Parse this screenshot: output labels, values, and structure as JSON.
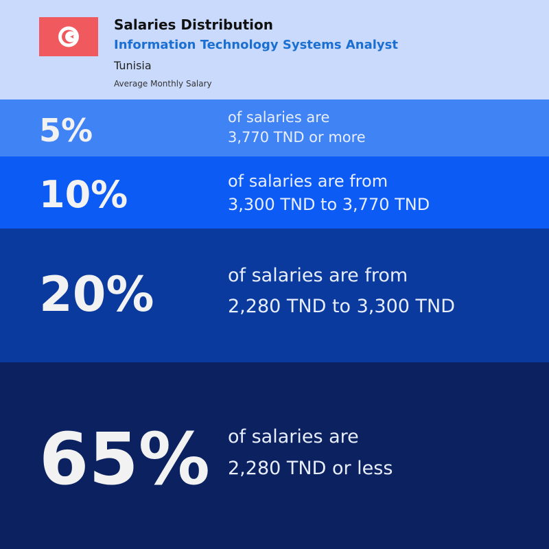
{
  "header": {
    "title": "Salaries Distribution",
    "subtitle": "Information Technology Systems Analyst",
    "country": "Tunisia",
    "caption": "Average Monthly Salary"
  },
  "bands": [
    {
      "percent": "5%",
      "lines": [
        "of salaries are",
        "3,770 TND or more"
      ]
    },
    {
      "percent": "10%",
      "lines": [
        "of salaries are from",
        "3,300 TND to 3,770 TND"
      ]
    },
    {
      "percent": "20%",
      "lines": [
        "of salaries are from",
        "2,280 TND to 3,300 TND"
      ]
    },
    {
      "percent": "65%",
      "lines": [
        "of salaries are",
        "2,280 TND or less"
      ]
    }
  ]
}
